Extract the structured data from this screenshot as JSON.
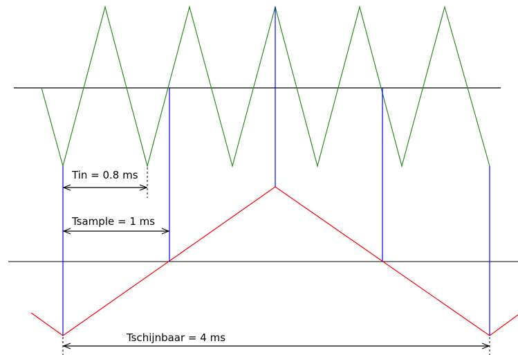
{
  "labels": {
    "tin": "Tin = 0.8 ms",
    "tsample": "Tsample = 1 ms",
    "tapparent": "Tschijnbaar  = 4 ms"
  },
  "colors": {
    "input_wave": "#2e8b22",
    "alias_wave": "#ff0000",
    "sample_lines": "#0000ff",
    "axis": "#000000"
  }
}
